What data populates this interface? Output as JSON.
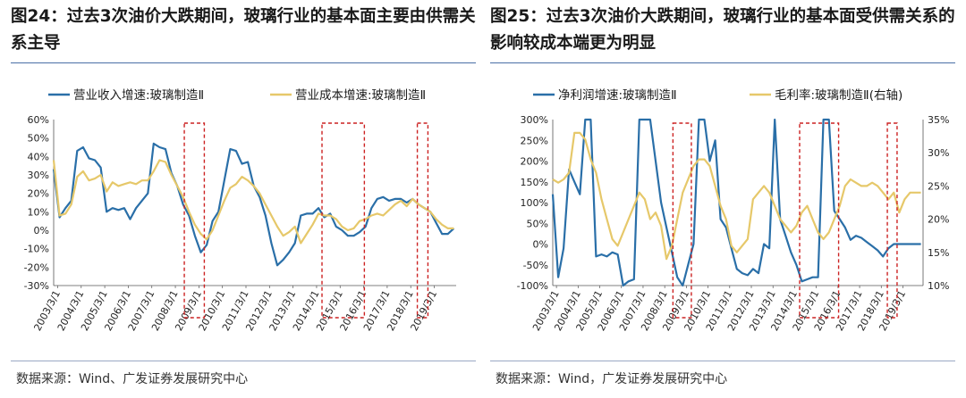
{
  "colors": {
    "blue": "#2a6fa8",
    "gold": "#e6c86a",
    "box": "#cc2222",
    "title_rule": "#4a6fa5"
  },
  "charts": [
    {
      "title": "图24：过去3次油价大跌期间，玻璃行业的基本面主要由供需关系主导",
      "source": "数据来源：Wind、广发证券发展研究中心",
      "chart_data": {
        "type": "line",
        "legend_position": "top",
        "xtick_labels": [
          "2003/3/1",
          "2004/3/1",
          "2005/3/1",
          "2006/3/1",
          "2007/3/1",
          "2008/3/1",
          "2009/3/1",
          "2010/3/1",
          "2011/3/1",
          "2012/3/1",
          "2013/3/1",
          "2014/3/1",
          "2015/3/1",
          "2016/3/1",
          "2017/3/1",
          "2018/3/1",
          "2019/3/1"
        ],
        "ytick_labels": [
          "60%",
          "50%",
          "40%",
          "30%",
          "20%",
          "10%",
          "0%",
          "-10%",
          "-20%",
          "-30%"
        ],
        "ylim": [
          -30,
          60
        ],
        "xlim": [
          2003.0,
          2020.1
        ],
        "series": [
          {
            "name": "营业收入增速:玻璃制造Ⅱ",
            "color": "#2a6fa8",
            "x": [
              2003.0,
              2003.25,
              2003.5,
              2003.75,
              2004.0,
              2004.25,
              2004.5,
              2004.75,
              2005.0,
              2005.25,
              2005.5,
              2005.75,
              2006.0,
              2006.25,
              2006.5,
              2006.75,
              2007.0,
              2007.25,
              2007.5,
              2007.75,
              2008.0,
              2008.25,
              2008.5,
              2008.75,
              2009.0,
              2009.25,
              2009.5,
              2009.75,
              2010.0,
              2010.25,
              2010.5,
              2010.75,
              2011.0,
              2011.25,
              2011.5,
              2011.75,
              2012.0,
              2012.25,
              2012.5,
              2012.75,
              2013.0,
              2013.25,
              2013.5,
              2013.75,
              2014.0,
              2014.25,
              2014.5,
              2014.75,
              2015.0,
              2015.25,
              2015.5,
              2015.75,
              2016.0,
              2016.25,
              2016.5,
              2016.75,
              2017.0,
              2017.25,
              2017.5,
              2017.75,
              2018.0,
              2018.25,
              2018.5,
              2018.75,
              2019.0,
              2019.25,
              2019.5,
              2019.75,
              2020.0
            ],
            "y": [
              33,
              7,
              12,
              16,
              43,
              45,
              39,
              38,
              34,
              10,
              12,
              11,
              12,
              6,
              12,
              16,
              20,
              47,
              45,
              44,
              31,
              24,
              14,
              8,
              -3,
              -12,
              -8,
              5,
              10,
              27,
              44,
              43,
              36,
              37,
              24,
              18,
              8,
              -7,
              -19,
              -16,
              -12,
              -7,
              8,
              9,
              9,
              12,
              7,
              9,
              2,
              0,
              -3,
              -3,
              -1,
              2,
              12,
              17,
              18,
              16,
              17,
              17,
              15,
              17,
              14,
              12,
              10,
              4,
              -2,
              -2,
              1
            ]
          },
          {
            "name": "营业成本增速:玻璃制造Ⅱ",
            "color": "#e6c86a",
            "x": [
              2003.0,
              2003.25,
              2003.5,
              2003.75,
              2004.0,
              2004.25,
              2004.5,
              2004.75,
              2005.0,
              2005.25,
              2005.5,
              2005.75,
              2006.0,
              2006.25,
              2006.5,
              2006.75,
              2007.0,
              2007.25,
              2007.5,
              2007.75,
              2008.0,
              2008.25,
              2008.5,
              2008.75,
              2009.0,
              2009.25,
              2009.5,
              2009.75,
              2010.0,
              2010.25,
              2010.5,
              2010.75,
              2011.0,
              2011.25,
              2011.5,
              2011.75,
              2012.0,
              2012.25,
              2012.5,
              2012.75,
              2013.0,
              2013.25,
              2013.5,
              2013.75,
              2014.0,
              2014.25,
              2014.5,
              2014.75,
              2015.0,
              2015.25,
              2015.5,
              2015.75,
              2016.0,
              2016.25,
              2016.5,
              2016.75,
              2017.0,
              2017.25,
              2017.5,
              2017.75,
              2018.0,
              2018.25,
              2018.5,
              2018.75,
              2019.0,
              2019.25,
              2019.5,
              2019.75,
              2020.0
            ],
            "y": [
              38,
              8,
              9,
              14,
              29,
              32,
              27,
              28,
              30,
              21,
              26,
              24,
              25,
              26,
              25,
              27,
              27,
              32,
              38,
              37,
              30,
              24,
              18,
              10,
              3,
              -2,
              -5,
              0,
              8,
              16,
              23,
              25,
              29,
              27,
              24,
              20,
              14,
              8,
              2,
              -3,
              -1,
              2,
              -7,
              -2,
              3,
              9,
              8,
              8,
              6,
              2,
              0,
              1,
              5,
              6,
              8,
              9,
              8,
              11,
              14,
              16,
              13,
              17,
              14,
              12,
              10,
              6,
              3,
              1,
              1
            ]
          }
        ],
        "highlight_boxes": [
          [
            2008.55,
            2009.4
          ],
          [
            2014.4,
            2016.2
          ],
          [
            2018.45,
            2018.9
          ]
        ]
      }
    },
    {
      "title": "图25：过去3次油价大跌期间，玻璃行业的基本面受供需关系的影响较成本端更为明显",
      "source": "数据来源：Wind，广发证券发展研究中心",
      "chart_data": {
        "type": "line",
        "legend_position": "top",
        "xtick_labels": [
          "2003/3/1",
          "2004/3/1",
          "2005/3/1",
          "2006/3/1",
          "2007/3/1",
          "2008/3/1",
          "2009/3/1",
          "2010/3/1",
          "2011/3/1",
          "2012/3/1",
          "2013/3/1",
          "2014/3/1",
          "2015/3/1",
          "2016/3/1",
          "2017/3/1",
          "2018/3/1",
          "2019/3/1"
        ],
        "ytick_labels": [
          "300%",
          "250%",
          "200%",
          "150%",
          "100%",
          "50%",
          "0%",
          "-50%",
          "-100%"
        ],
        "y2tick_labels": [
          "35%",
          "30%",
          "25%",
          "20%",
          "15%",
          "10%"
        ],
        "ylim": [
          -100,
          300
        ],
        "y2lim": [
          10,
          35
        ],
        "xlim": [
          2003.0,
          2020.1
        ],
        "series": [
          {
            "name": "净利润增速:玻璃制造Ⅱ",
            "color": "#2a6fa8",
            "axis": "left",
            "x": [
              2003.0,
              2003.25,
              2003.5,
              2003.75,
              2004.0,
              2004.25,
              2004.5,
              2004.75,
              2005.0,
              2005.25,
              2005.5,
              2005.75,
              2006.0,
              2006.25,
              2006.5,
              2006.75,
              2007.0,
              2007.25,
              2007.5,
              2007.75,
              2008.0,
              2008.25,
              2008.5,
              2008.75,
              2009.0,
              2009.25,
              2009.5,
              2009.75,
              2010.0,
              2010.25,
              2010.5,
              2010.75,
              2011.0,
              2011.25,
              2011.5,
              2011.75,
              2012.0,
              2012.25,
              2012.5,
              2012.75,
              2013.0,
              2013.25,
              2013.5,
              2013.75,
              2014.0,
              2014.25,
              2014.5,
              2014.75,
              2015.0,
              2015.25,
              2015.5,
              2015.75,
              2016.0,
              2016.25,
              2016.5,
              2016.75,
              2017.0,
              2017.25,
              2017.5,
              2017.75,
              2018.0,
              2018.25,
              2018.5,
              2018.75,
              2019.0,
              2019.25,
              2019.5,
              2019.75,
              2020.0
            ],
            "y": [
              120,
              -80,
              -10,
              180,
              150,
              120,
              300,
              300,
              -30,
              -25,
              -30,
              -20,
              -25,
              -100,
              -90,
              -85,
              300,
              300,
              300,
              200,
              100,
              40,
              -20,
              -80,
              -100,
              -50,
              0,
              300,
              300,
              200,
              250,
              60,
              40,
              -10,
              -60,
              -70,
              -75,
              -60,
              -70,
              0,
              -10,
              300,
              60,
              20,
              -20,
              -50,
              -90,
              -85,
              -80,
              -80,
              300,
              300,
              80,
              60,
              40,
              10,
              20,
              15,
              5,
              -5,
              -15,
              -30,
              -10,
              0,
              0,
              0,
              0,
              0,
              0
            ]
          },
          {
            "name": "毛利率:玻璃制造Ⅱ(右轴)",
            "color": "#e6c86a",
            "axis": "right",
            "x": [
              2003.0,
              2003.25,
              2003.5,
              2003.75,
              2004.0,
              2004.25,
              2004.5,
              2004.75,
              2005.0,
              2005.25,
              2005.5,
              2005.75,
              2006.0,
              2006.25,
              2006.5,
              2006.75,
              2007.0,
              2007.25,
              2007.5,
              2007.75,
              2008.0,
              2008.25,
              2008.5,
              2008.75,
              2009.0,
              2009.25,
              2009.5,
              2009.75,
              2010.0,
              2010.25,
              2010.5,
              2010.75,
              2011.0,
              2011.25,
              2011.5,
              2011.75,
              2012.0,
              2012.25,
              2012.5,
              2012.75,
              2013.0,
              2013.25,
              2013.5,
              2013.75,
              2014.0,
              2014.25,
              2014.5,
              2014.75,
              2015.0,
              2015.25,
              2015.5,
              2015.75,
              2016.0,
              2016.25,
              2016.5,
              2016.75,
              2017.0,
              2017.25,
              2017.5,
              2017.75,
              2018.0,
              2018.25,
              2018.5,
              2018.75,
              2019.0,
              2019.25,
              2019.5,
              2019.75,
              2020.0
            ],
            "y": [
              26,
              25.5,
              26,
              27,
              33,
              33,
              32,
              29,
              27,
              23,
              20,
              17,
              16,
              18,
              20,
              22,
              24,
              23,
              20,
              21,
              19,
              14,
              16,
              20,
              24,
              26,
              28,
              29,
              29,
              28,
              25,
              22,
              20,
              16,
              15,
              16,
              17,
              23,
              24,
              25,
              24,
              22,
              20,
              19,
              18,
              19,
              21,
              22,
              20,
              18,
              17,
              18,
              20,
              22,
              25,
              26,
              25.5,
              25,
              25,
              25.5,
              25,
              24,
              23,
              24,
              21,
              23,
              24,
              24,
              24
            ]
          }
        ],
        "highlight_boxes": [
          [
            2008.55,
            2009.4
          ],
          [
            2014.4,
            2016.2
          ],
          [
            2018.45,
            2018.9
          ]
        ]
      }
    }
  ]
}
